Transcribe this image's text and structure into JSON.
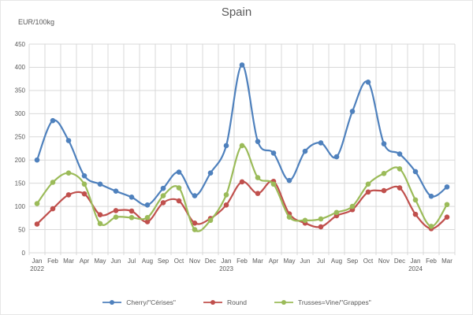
{
  "title": "Spain",
  "axis_unit": "EUR/100kg",
  "colors": {
    "cherry": "#4F81BD",
    "round": "#C0504D",
    "trusses": "#9BBB59",
    "grid": "#D9D9D9",
    "text": "#595959"
  },
  "chart_data": {
    "type": "line",
    "title": "Spain",
    "ylabel": "EUR/100kg",
    "ylim": [
      0,
      450
    ],
    "ytick_step": 50,
    "grid": true,
    "legend_position": "bottom",
    "marker": "circle",
    "x_months": [
      "Jan",
      "Feb",
      "Mar",
      "Apr",
      "May",
      "Jun",
      "Jul",
      "Aug",
      "Sep",
      "Oct",
      "Nov",
      "Dec",
      "Jan",
      "Feb",
      "Mar",
      "Apr",
      "May",
      "Jun",
      "Jul",
      "Aug",
      "Sep",
      "Oct",
      "Nov",
      "Dec",
      "Jan",
      "Feb",
      "Mar"
    ],
    "x_years": [
      "2022",
      "",
      "",
      "",
      "",
      "",
      "",
      "",
      "",
      "",
      "",
      "",
      "2023",
      "",
      "",
      "",
      "",
      "",
      "",
      "",
      "",
      "",
      "",
      "",
      "2024",
      "",
      ""
    ],
    "series": [
      {
        "name": "Cherry/\"Cérises\"",
        "color": "#4F81BD",
        "values": [
          200,
          285,
          242,
          166,
          148,
          133,
          120,
          103,
          139,
          174,
          123,
          172,
          231,
          405,
          240,
          215,
          156,
          219,
          237,
          207,
          305,
          368,
          235,
          213,
          175,
          122,
          142
        ]
      },
      {
        "name": "Round",
        "color": "#C0504D",
        "values": [
          62,
          95,
          125,
          127,
          82,
          91,
          90,
          67,
          108,
          112,
          64,
          74,
          103,
          153,
          128,
          154,
          84,
          64,
          56,
          80,
          93,
          131,
          134,
          140,
          83,
          52,
          77
        ]
      },
      {
        "name": "Trusses=Vine/\"Grappes\"",
        "color": "#9BBB59",
        "values": [
          106,
          152,
          172,
          148,
          63,
          77,
          76,
          76,
          123,
          140,
          50,
          70,
          125,
          231,
          162,
          148,
          77,
          70,
          73,
          87,
          100,
          148,
          171,
          181,
          114,
          57,
          104
        ]
      }
    ]
  }
}
